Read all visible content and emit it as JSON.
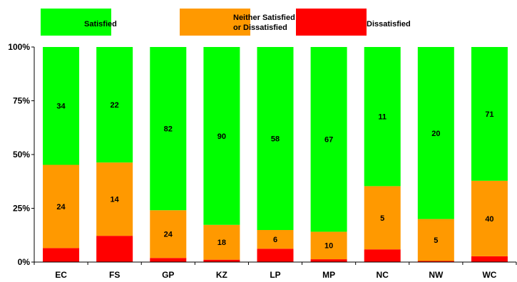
{
  "chart_data": {
    "type": "bar",
    "stacked": true,
    "percent_stacked": true,
    "categories": [
      "EC",
      "FS",
      "GP",
      "KZ",
      "LP",
      "MP",
      "NC",
      "NW",
      "WC"
    ],
    "series": [
      {
        "name": "Dissatisfied",
        "color": "#ff0000",
        "percent": [
          6.5,
          12.2,
          1.9,
          1.1,
          6.2,
          1.3,
          5.9,
          0.5,
          2.7
        ],
        "labels": [
          "",
          "",
          "",
          "",
          "",
          "",
          "",
          "",
          ""
        ]
      },
      {
        "name": "Neither Satisfied or Dissatisfied",
        "legend_lines": [
          "Neither Satisfied",
          "or Dissatisfied"
        ],
        "color": "#ff9900",
        "percent": [
          38.7,
          34.1,
          22.2,
          16.2,
          8.7,
          12.8,
          29.4,
          19.5,
          35.1
        ],
        "labels": [
          "24",
          "14",
          "24",
          "18",
          "6",
          "10",
          "5",
          "5",
          "40"
        ]
      },
      {
        "name": "Satisfied",
        "color": "#00ff00",
        "percent": [
          54.8,
          53.7,
          75.9,
          82.7,
          85.1,
          85.9,
          64.7,
          80.0,
          62.2
        ],
        "labels": [
          "34",
          "22",
          "82",
          "90",
          "58",
          "67",
          "11",
          "20",
          "71"
        ]
      }
    ],
    "ylim": [
      0,
      100
    ],
    "yticks": [
      "0%",
      "25%",
      "50%",
      "75%",
      "100%"
    ],
    "legend_position": "top",
    "grid": false
  }
}
